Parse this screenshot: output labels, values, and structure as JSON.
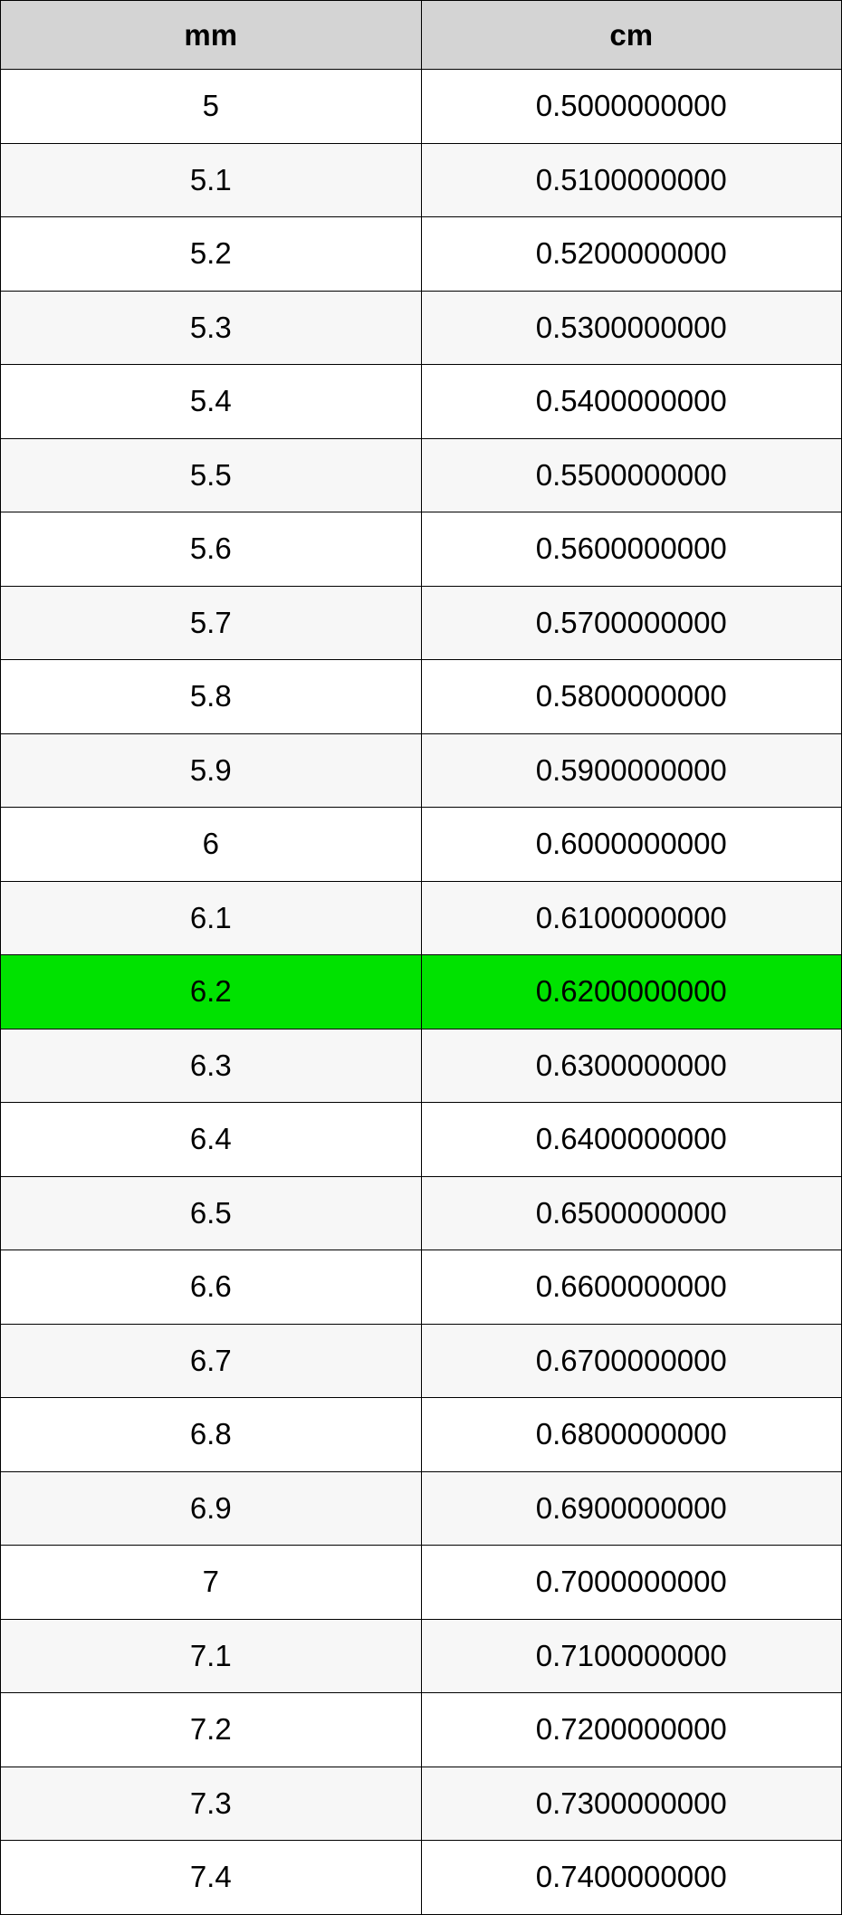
{
  "table": {
    "header_bg": "#d4d4d4",
    "row_even_bg": "#ffffff",
    "row_odd_bg": "#f7f7f7",
    "highlight_bg": "#00e200",
    "border_color": "#000000",
    "font_family": "Arial, Helvetica, sans-serif",
    "header_fontsize": 33,
    "cell_fontsize": 33,
    "columns": [
      {
        "key": "mm",
        "label": "mm",
        "align": "center"
      },
      {
        "key": "cm",
        "label": "cm",
        "align": "center"
      }
    ],
    "rows": [
      {
        "mm": "5",
        "cm": "0.5000000000",
        "highlight": false
      },
      {
        "mm": "5.1",
        "cm": "0.5100000000",
        "highlight": false
      },
      {
        "mm": "5.2",
        "cm": "0.5200000000",
        "highlight": false
      },
      {
        "mm": "5.3",
        "cm": "0.5300000000",
        "highlight": false
      },
      {
        "mm": "5.4",
        "cm": "0.5400000000",
        "highlight": false
      },
      {
        "mm": "5.5",
        "cm": "0.5500000000",
        "highlight": false
      },
      {
        "mm": "5.6",
        "cm": "0.5600000000",
        "highlight": false
      },
      {
        "mm": "5.7",
        "cm": "0.5700000000",
        "highlight": false
      },
      {
        "mm": "5.8",
        "cm": "0.5800000000",
        "highlight": false
      },
      {
        "mm": "5.9",
        "cm": "0.5900000000",
        "highlight": false
      },
      {
        "mm": "6",
        "cm": "0.6000000000",
        "highlight": false
      },
      {
        "mm": "6.1",
        "cm": "0.6100000000",
        "highlight": false
      },
      {
        "mm": "6.2",
        "cm": "0.6200000000",
        "highlight": true
      },
      {
        "mm": "6.3",
        "cm": "0.6300000000",
        "highlight": false
      },
      {
        "mm": "6.4",
        "cm": "0.6400000000",
        "highlight": false
      },
      {
        "mm": "6.5",
        "cm": "0.6500000000",
        "highlight": false
      },
      {
        "mm": "6.6",
        "cm": "0.6600000000",
        "highlight": false
      },
      {
        "mm": "6.7",
        "cm": "0.6700000000",
        "highlight": false
      },
      {
        "mm": "6.8",
        "cm": "0.6800000000",
        "highlight": false
      },
      {
        "mm": "6.9",
        "cm": "0.6900000000",
        "highlight": false
      },
      {
        "mm": "7",
        "cm": "0.7000000000",
        "highlight": false
      },
      {
        "mm": "7.1",
        "cm": "0.7100000000",
        "highlight": false
      },
      {
        "mm": "7.2",
        "cm": "0.7200000000",
        "highlight": false
      },
      {
        "mm": "7.3",
        "cm": "0.7300000000",
        "highlight": false
      },
      {
        "mm": "7.4",
        "cm": "0.7400000000",
        "highlight": false
      }
    ]
  }
}
